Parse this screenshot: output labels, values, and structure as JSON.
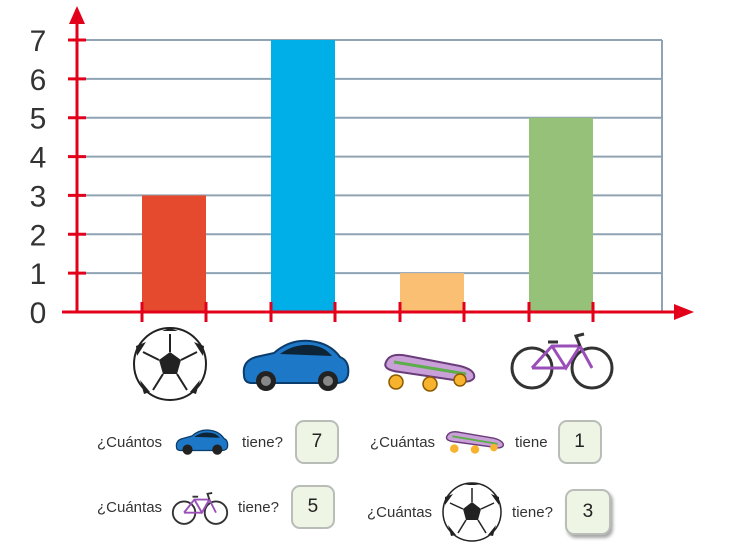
{
  "chart_data": {
    "type": "bar",
    "categories": [
      "soccer-ball",
      "car",
      "skateboard",
      "bicycle"
    ],
    "values": [
      3,
      7,
      1,
      5
    ],
    "bar_colors": [
      "#e64a2e",
      "#00aee8",
      "#fbbf74",
      "#96c178"
    ],
    "ylim": [
      0,
      7
    ],
    "yticks": [
      "0",
      "1",
      "2",
      "3",
      "4",
      "5",
      "6",
      "7"
    ],
    "grid": true,
    "axis_color": "#e2001a",
    "grid_color": "#8fa3b3"
  },
  "questions": [
    {
      "prefix": "¿Cuántos",
      "icon": "car-icon",
      "suffix": "tiene?",
      "answer": "7"
    },
    {
      "prefix": "¿Cuántas",
      "icon": "skateboard-icon",
      "suffix": "tiene",
      "answer": "1"
    },
    {
      "prefix": "¿Cuántas",
      "icon": "bicycle-icon",
      "suffix": "tiene?",
      "answer": "5"
    },
    {
      "prefix": "¿Cuántas",
      "icon": "soccer-ball-icon",
      "suffix": "tiene?",
      "answer": "3"
    }
  ]
}
